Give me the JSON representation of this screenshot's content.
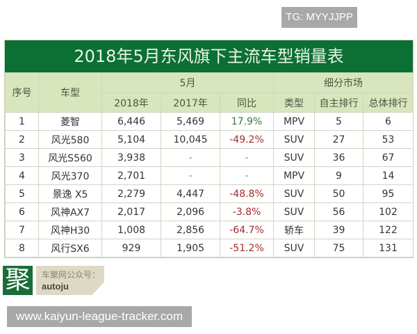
{
  "watermark_top": "TG: MYYJJPP",
  "watermark_bottom": "www.kaiyun-league-tracker.com",
  "table": {
    "title": "2018年5月东风旗下主流车型销量表",
    "header": {
      "index": "序号",
      "model": "车型",
      "month_group": "5月",
      "segment_group": "细分市场",
      "y2018": "2018年",
      "y2017": "2017年",
      "yoy": "同比",
      "type": "类型",
      "domestic_rank": "自主排行",
      "overall_rank": "总体排行"
    },
    "rows": [
      {
        "index": "1",
        "model": "菱智",
        "y2018": "6,446",
        "y2017": "5,469",
        "yoy": "17.9%",
        "yoy_sign": "pos",
        "type": "MPV",
        "domestic_rank": "5",
        "overall_rank": "6"
      },
      {
        "index": "2",
        "model": "风光580",
        "y2018": "5,104",
        "y2017": "10,045",
        "yoy": "-49.2%",
        "yoy_sign": "neg",
        "type": "SUV",
        "domestic_rank": "27",
        "overall_rank": "53"
      },
      {
        "index": "3",
        "model": "风光S560",
        "y2018": "3,938",
        "y2017": "-",
        "yoy": "-",
        "yoy_sign": "dash",
        "type": "SUV",
        "domestic_rank": "36",
        "overall_rank": "67"
      },
      {
        "index": "4",
        "model": "风光370",
        "y2018": "2,701",
        "y2017": "-",
        "yoy": "-",
        "yoy_sign": "dash",
        "type": "MPV",
        "domestic_rank": "9",
        "overall_rank": "14"
      },
      {
        "index": "5",
        "model": "景逸 X5",
        "y2018": "2,279",
        "y2017": "4,447",
        "yoy": "-48.8%",
        "yoy_sign": "neg",
        "type": "SUV",
        "domestic_rank": "50",
        "overall_rank": "95"
      },
      {
        "index": "6",
        "model": "风神AX7",
        "y2018": "2,017",
        "y2017": "2,096",
        "yoy": "-3.8%",
        "yoy_sign": "neg",
        "type": "SUV",
        "domestic_rank": "56",
        "overall_rank": "102"
      },
      {
        "index": "7",
        "model": "风神H30",
        "y2018": "1,008",
        "y2017": "2,856",
        "yoy": "-64.7%",
        "yoy_sign": "neg",
        "type": "轿车",
        "domestic_rank": "39",
        "overall_rank": "122"
      },
      {
        "index": "8",
        "model": "风行SX6",
        "y2018": "929",
        "y2017": "1,905",
        "yoy": "-51.2%",
        "yoy_sign": "neg",
        "type": "SUV",
        "domestic_rank": "75",
        "overall_rank": "131"
      }
    ]
  },
  "logo": {
    "glyph": "聚",
    "line1": "车聚网公众号：",
    "line2": "autoju"
  },
  "colors": {
    "title_bg": "#0c6f34",
    "header_bg": "#d8e5bd",
    "positive": "#2e7a3c",
    "negative": "#a52a2a"
  }
}
